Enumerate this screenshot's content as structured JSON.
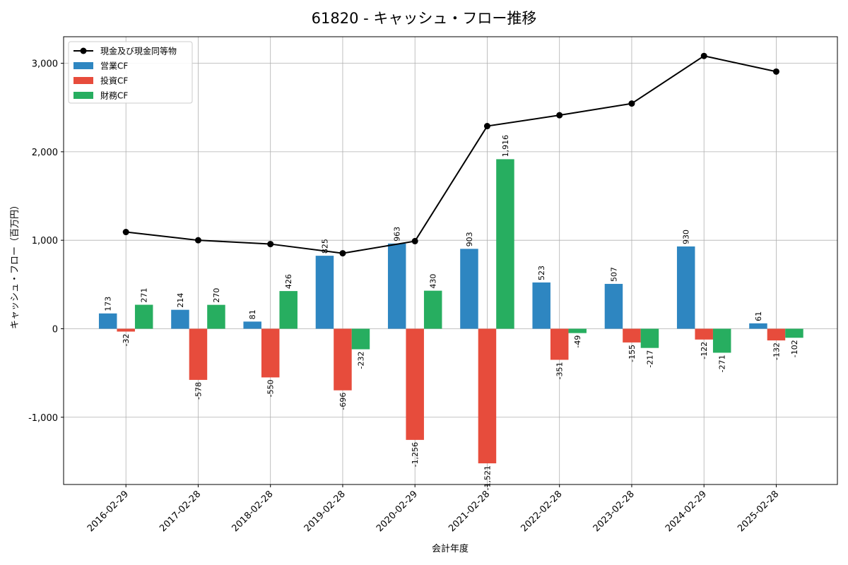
{
  "chart_data": {
    "type": "bar",
    "title": "61820 - キャッシュ・フロー推移",
    "xlabel": "会計年度",
    "ylabel": "キャッシュ・フロー（百万円）",
    "categories": [
      "2016-02-29",
      "2017-02-28",
      "2018-02-28",
      "2019-02-28",
      "2020-02-29",
      "2021-02-28",
      "2022-02-28",
      "2023-02-28",
      "2024-02-29",
      "2025-02-28"
    ],
    "ylim": [
      -1760,
      3300
    ],
    "yticks": [
      -1000,
      0,
      1000,
      2000,
      3000
    ],
    "ytick_labels": [
      "-1,000",
      "0",
      "1,000",
      "2,000",
      "3,000"
    ],
    "grid": true,
    "legend_position": "top-left",
    "series": [
      {
        "name": "営業CF",
        "kind": "bar",
        "color": "#2e86c1",
        "values": [
          173,
          214,
          81,
          825,
          963,
          903,
          523,
          507,
          930,
          61
        ],
        "labels": [
          "173",
          "214",
          "81",
          "825",
          "963",
          "903",
          "523",
          "507",
          "930",
          "61"
        ]
      },
      {
        "name": "投資CF",
        "kind": "bar",
        "color": "#e74c3c",
        "values": [
          -32,
          -578,
          -550,
          -696,
          -1256,
          -1521,
          -351,
          -155,
          -122,
          -132
        ],
        "labels": [
          "-32",
          "-578",
          "-550",
          "-696",
          "-1,256",
          "-1,521",
          "-351",
          "-155",
          "-122",
          "-132"
        ]
      },
      {
        "name": "財務CF",
        "kind": "bar",
        "color": "#27ae60",
        "values": [
          271,
          270,
          426,
          -232,
          430,
          1916,
          -49,
          -217,
          -271,
          -102
        ],
        "labels": [
          "271",
          "270",
          "426",
          "-232",
          "430",
          "1,916",
          "-49",
          "-217",
          "-271",
          "-102"
        ]
      },
      {
        "name": "現金及び現金同等物",
        "kind": "line",
        "color": "#000000",
        "values": [
          1093,
          1000,
          957,
          853,
          990,
          2290,
          2413,
          2545,
          3083,
          2906
        ]
      }
    ]
  }
}
